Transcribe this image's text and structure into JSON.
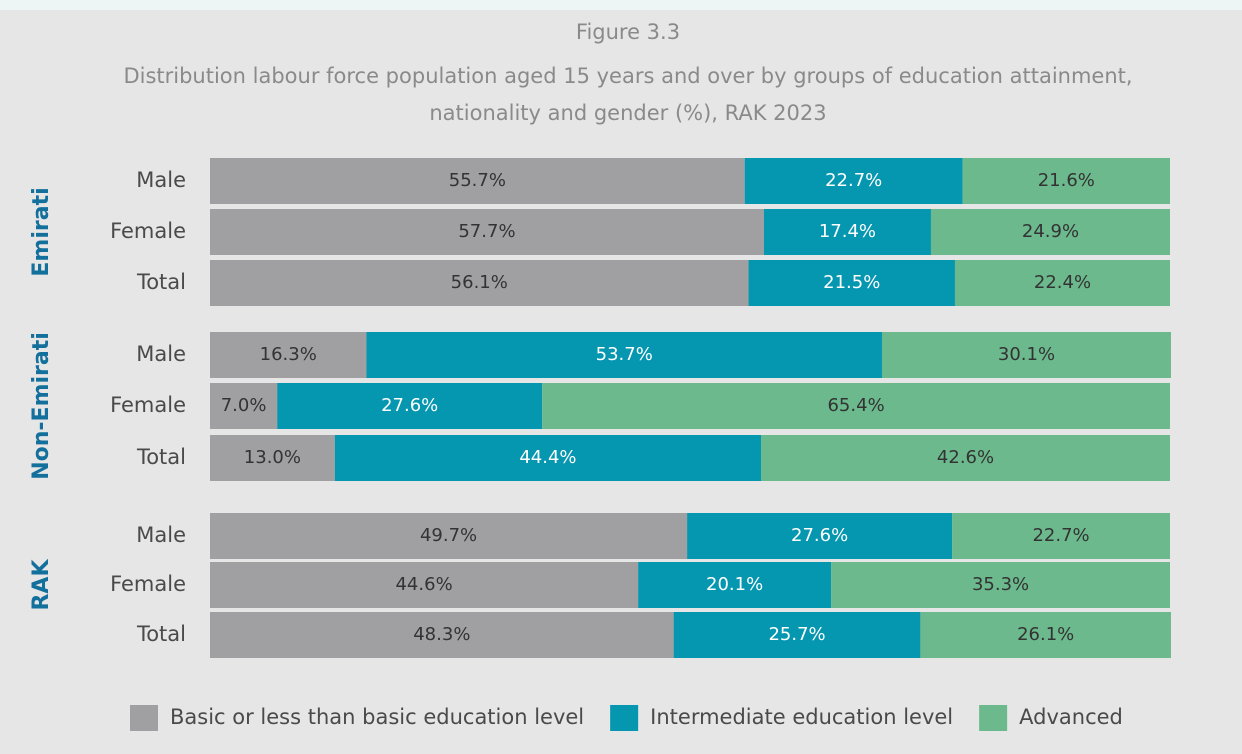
{
  "chart_data": {
    "type": "bar",
    "orientation": "horizontal",
    "stacked": true,
    "title": "Figure 3.3",
    "subtitle": [
      "Distribution labour force population aged 15 years and over by groups of education attainment,",
      "nationality and gender (%), RAK 2023"
    ],
    "groups": [
      "Emirati",
      "Non-Emirati",
      "RAK"
    ],
    "categories": [
      "Male",
      "Female",
      "Total",
      "Male",
      "Female",
      "Total",
      "Male",
      "Female",
      "Total"
    ],
    "series": [
      {
        "name": "Basic or less than basic education level",
        "color": "#a09fa1",
        "values": [
          55.7,
          57.7,
          56.1,
          16.3,
          7.0,
          13.0,
          49.7,
          44.6,
          48.3
        ],
        "value_labels": [
          "55.7%",
          "57.7%",
          "56.1%",
          "16.3%",
          "7.0%",
          "13.0%",
          "49.7%",
          "44.6%",
          "48.3%"
        ]
      },
      {
        "name": "Intermediate education level",
        "color": "#0596b0",
        "values": [
          22.7,
          17.4,
          21.5,
          53.7,
          27.6,
          44.4,
          27.6,
          20.1,
          25.7
        ],
        "value_labels": [
          "22.7%",
          "17.4%",
          "21.5%",
          "53.7%",
          "27.6%",
          "44.4%",
          "27.6%",
          "20.1%",
          "25.7%"
        ]
      },
      {
        "name": "Advanced",
        "color": "#6bb98c",
        "values": [
          21.6,
          24.9,
          22.4,
          30.1,
          65.4,
          42.6,
          22.7,
          35.3,
          26.1
        ],
        "value_labels": [
          "21.6%",
          "24.9%",
          "22.4%",
          "30.1%",
          "65.4%",
          "42.6%",
          "22.7%",
          "35.3%",
          "26.1%"
        ]
      }
    ],
    "legend": "bottom"
  }
}
